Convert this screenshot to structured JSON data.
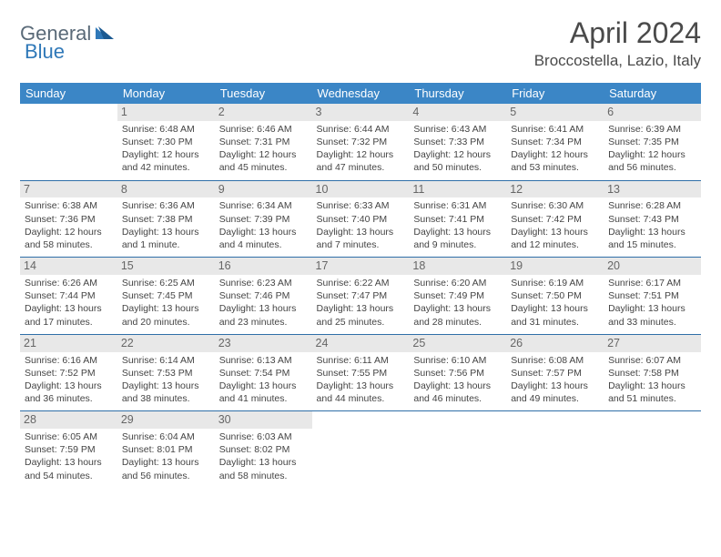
{
  "logo": {
    "part1": "General",
    "part2": "Blue"
  },
  "title": "April 2024",
  "location": "Broccostella, Lazio, Italy",
  "header_bg": "#3b86c6",
  "header_fg": "#ffffff",
  "daynum_bg": "#e8e8e8",
  "row_border": "#2f6fa8",
  "weekdays": [
    "Sunday",
    "Monday",
    "Tuesday",
    "Wednesday",
    "Thursday",
    "Friday",
    "Saturday"
  ],
  "weeks": [
    [
      {
        "n": "",
        "l": [
          "",
          "",
          "",
          ""
        ]
      },
      {
        "n": "1",
        "l": [
          "Sunrise: 6:48 AM",
          "Sunset: 7:30 PM",
          "Daylight: 12 hours",
          "and 42 minutes."
        ]
      },
      {
        "n": "2",
        "l": [
          "Sunrise: 6:46 AM",
          "Sunset: 7:31 PM",
          "Daylight: 12 hours",
          "and 45 minutes."
        ]
      },
      {
        "n": "3",
        "l": [
          "Sunrise: 6:44 AM",
          "Sunset: 7:32 PM",
          "Daylight: 12 hours",
          "and 47 minutes."
        ]
      },
      {
        "n": "4",
        "l": [
          "Sunrise: 6:43 AM",
          "Sunset: 7:33 PM",
          "Daylight: 12 hours",
          "and 50 minutes."
        ]
      },
      {
        "n": "5",
        "l": [
          "Sunrise: 6:41 AM",
          "Sunset: 7:34 PM",
          "Daylight: 12 hours",
          "and 53 minutes."
        ]
      },
      {
        "n": "6",
        "l": [
          "Sunrise: 6:39 AM",
          "Sunset: 7:35 PM",
          "Daylight: 12 hours",
          "and 56 minutes."
        ]
      }
    ],
    [
      {
        "n": "7",
        "l": [
          "Sunrise: 6:38 AM",
          "Sunset: 7:36 PM",
          "Daylight: 12 hours",
          "and 58 minutes."
        ]
      },
      {
        "n": "8",
        "l": [
          "Sunrise: 6:36 AM",
          "Sunset: 7:38 PM",
          "Daylight: 13 hours",
          "and 1 minute."
        ]
      },
      {
        "n": "9",
        "l": [
          "Sunrise: 6:34 AM",
          "Sunset: 7:39 PM",
          "Daylight: 13 hours",
          "and 4 minutes."
        ]
      },
      {
        "n": "10",
        "l": [
          "Sunrise: 6:33 AM",
          "Sunset: 7:40 PM",
          "Daylight: 13 hours",
          "and 7 minutes."
        ]
      },
      {
        "n": "11",
        "l": [
          "Sunrise: 6:31 AM",
          "Sunset: 7:41 PM",
          "Daylight: 13 hours",
          "and 9 minutes."
        ]
      },
      {
        "n": "12",
        "l": [
          "Sunrise: 6:30 AM",
          "Sunset: 7:42 PM",
          "Daylight: 13 hours",
          "and 12 minutes."
        ]
      },
      {
        "n": "13",
        "l": [
          "Sunrise: 6:28 AM",
          "Sunset: 7:43 PM",
          "Daylight: 13 hours",
          "and 15 minutes."
        ]
      }
    ],
    [
      {
        "n": "14",
        "l": [
          "Sunrise: 6:26 AM",
          "Sunset: 7:44 PM",
          "Daylight: 13 hours",
          "and 17 minutes."
        ]
      },
      {
        "n": "15",
        "l": [
          "Sunrise: 6:25 AM",
          "Sunset: 7:45 PM",
          "Daylight: 13 hours",
          "and 20 minutes."
        ]
      },
      {
        "n": "16",
        "l": [
          "Sunrise: 6:23 AM",
          "Sunset: 7:46 PM",
          "Daylight: 13 hours",
          "and 23 minutes."
        ]
      },
      {
        "n": "17",
        "l": [
          "Sunrise: 6:22 AM",
          "Sunset: 7:47 PM",
          "Daylight: 13 hours",
          "and 25 minutes."
        ]
      },
      {
        "n": "18",
        "l": [
          "Sunrise: 6:20 AM",
          "Sunset: 7:49 PM",
          "Daylight: 13 hours",
          "and 28 minutes."
        ]
      },
      {
        "n": "19",
        "l": [
          "Sunrise: 6:19 AM",
          "Sunset: 7:50 PM",
          "Daylight: 13 hours",
          "and 31 minutes."
        ]
      },
      {
        "n": "20",
        "l": [
          "Sunrise: 6:17 AM",
          "Sunset: 7:51 PM",
          "Daylight: 13 hours",
          "and 33 minutes."
        ]
      }
    ],
    [
      {
        "n": "21",
        "l": [
          "Sunrise: 6:16 AM",
          "Sunset: 7:52 PM",
          "Daylight: 13 hours",
          "and 36 minutes."
        ]
      },
      {
        "n": "22",
        "l": [
          "Sunrise: 6:14 AM",
          "Sunset: 7:53 PM",
          "Daylight: 13 hours",
          "and 38 minutes."
        ]
      },
      {
        "n": "23",
        "l": [
          "Sunrise: 6:13 AM",
          "Sunset: 7:54 PM",
          "Daylight: 13 hours",
          "and 41 minutes."
        ]
      },
      {
        "n": "24",
        "l": [
          "Sunrise: 6:11 AM",
          "Sunset: 7:55 PM",
          "Daylight: 13 hours",
          "and 44 minutes."
        ]
      },
      {
        "n": "25",
        "l": [
          "Sunrise: 6:10 AM",
          "Sunset: 7:56 PM",
          "Daylight: 13 hours",
          "and 46 minutes."
        ]
      },
      {
        "n": "26",
        "l": [
          "Sunrise: 6:08 AM",
          "Sunset: 7:57 PM",
          "Daylight: 13 hours",
          "and 49 minutes."
        ]
      },
      {
        "n": "27",
        "l": [
          "Sunrise: 6:07 AM",
          "Sunset: 7:58 PM",
          "Daylight: 13 hours",
          "and 51 minutes."
        ]
      }
    ],
    [
      {
        "n": "28",
        "l": [
          "Sunrise: 6:05 AM",
          "Sunset: 7:59 PM",
          "Daylight: 13 hours",
          "and 54 minutes."
        ]
      },
      {
        "n": "29",
        "l": [
          "Sunrise: 6:04 AM",
          "Sunset: 8:01 PM",
          "Daylight: 13 hours",
          "and 56 minutes."
        ]
      },
      {
        "n": "30",
        "l": [
          "Sunrise: 6:03 AM",
          "Sunset: 8:02 PM",
          "Daylight: 13 hours",
          "and 58 minutes."
        ]
      },
      {
        "n": "",
        "l": [
          "",
          "",
          "",
          ""
        ]
      },
      {
        "n": "",
        "l": [
          "",
          "",
          "",
          ""
        ]
      },
      {
        "n": "",
        "l": [
          "",
          "",
          "",
          ""
        ]
      },
      {
        "n": "",
        "l": [
          "",
          "",
          "",
          ""
        ]
      }
    ]
  ]
}
